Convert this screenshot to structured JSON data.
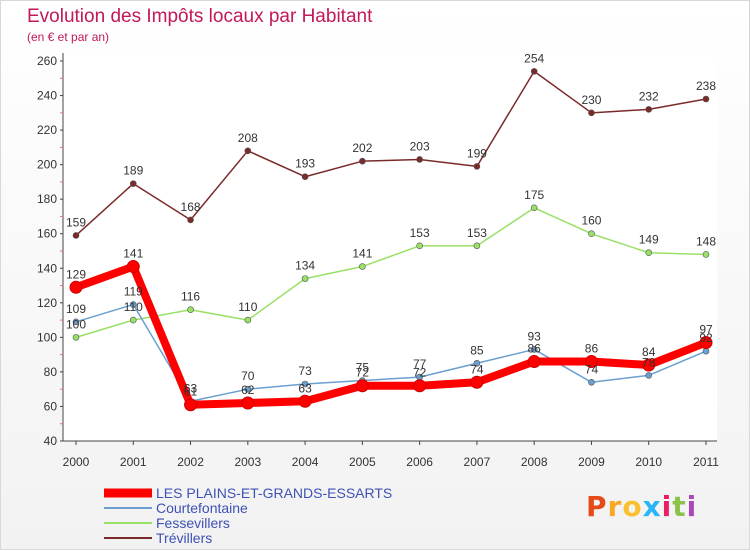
{
  "title": "Evolution des Impôts locaux par Habitant",
  "subtitle": "(en € et par an)",
  "logo": "Proxiti",
  "chart_data": {
    "type": "line",
    "title": "Evolution des Impôts locaux par Habitant",
    "subtitle": "(en € et par an)",
    "xlabel": "",
    "ylabel": "",
    "x": [
      "2000",
      "2001",
      "2002",
      "2003",
      "2004",
      "2005",
      "2006",
      "2007",
      "2008",
      "2009",
      "2010",
      "2011"
    ],
    "ylim": [
      40,
      260
    ],
    "yticks": [
      40,
      60,
      80,
      100,
      120,
      140,
      160,
      180,
      200,
      220,
      240,
      260
    ],
    "grid": false,
    "legend_position": "bottom-left",
    "series": [
      {
        "name": "LES PLAINS-ET-GRANDS-ESSARTS",
        "color": "#ff0000",
        "values": [
          129,
          141,
          61,
          62,
          63,
          72,
          72,
          74,
          86,
          86,
          84,
          97
        ]
      },
      {
        "name": "Courtefontaine",
        "color": "#6a9fd0",
        "values": [
          109,
          119,
          63,
          70,
          73,
          75,
          77,
          85,
          93,
          74,
          78,
          92
        ]
      },
      {
        "name": "Fessevillers",
        "color": "#99e066",
        "values": [
          100,
          110,
          116,
          110,
          134,
          141,
          153,
          153,
          175,
          160,
          149,
          148
        ]
      },
      {
        "name": "Trévillers",
        "color": "#7b2a2a",
        "values": [
          159,
          189,
          168,
          208,
          193,
          202,
          203,
          199,
          254,
          230,
          232,
          238
        ]
      }
    ]
  }
}
